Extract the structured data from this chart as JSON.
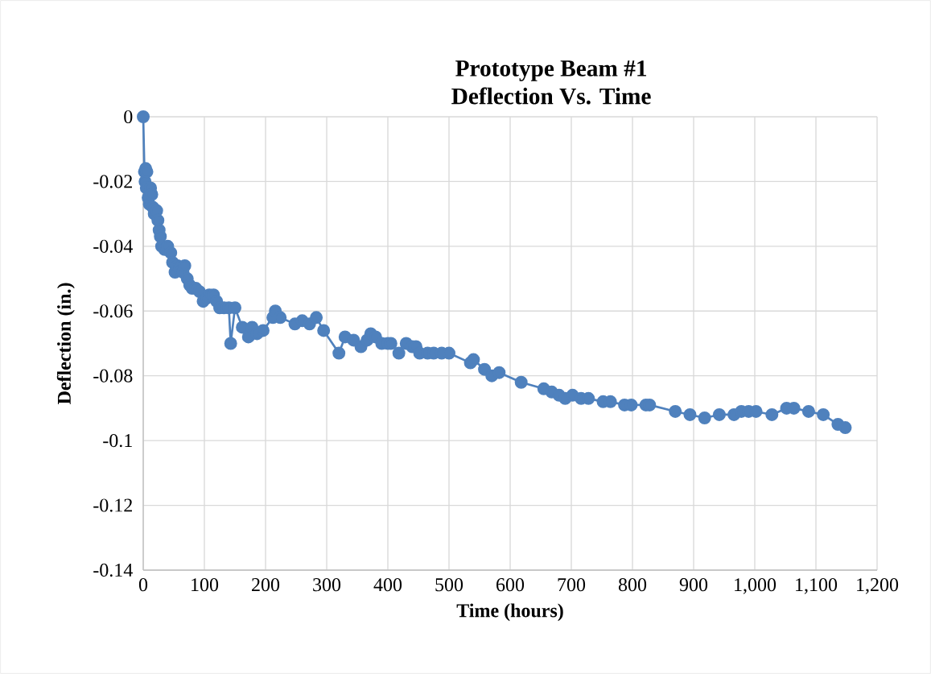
{
  "chart_data": {
    "type": "line",
    "title": "Prototype Beam #1",
    "subtitle": "Deflection Vs. Time",
    "xlabel": "Time (hours)",
    "ylabel": "Deflection (in.)",
    "x": [
      0,
      2,
      3,
      4,
      5,
      6,
      8,
      10,
      12,
      14,
      16,
      18,
      22,
      24,
      26,
      28,
      30,
      35,
      40,
      45,
      48,
      52,
      56,
      60,
      65,
      68,
      72,
      76,
      80,
      86,
      92,
      98,
      104,
      108,
      115,
      120,
      125,
      132,
      140,
      143,
      150,
      162,
      172,
      178,
      186,
      196,
      212,
      216,
      224,
      248,
      260,
      272,
      283,
      295,
      320,
      330,
      344,
      356,
      366,
      372,
      380,
      390,
      400,
      405,
      418,
      430,
      440,
      446,
      452,
      465,
      475,
      488,
      500,
      535,
      540,
      558,
      570,
      582,
      618,
      655,
      668,
      680,
      690,
      702,
      716,
      728,
      752,
      764,
      787,
      798,
      822,
      828,
      870,
      894,
      918,
      942,
      966,
      978,
      990,
      1002,
      1028,
      1052,
      1064,
      1088,
      1112,
      1136,
      1148
    ],
    "series": [
      {
        "color": "#4f81bd",
        "values": [
          0,
          -0.017,
          -0.02,
          -0.016,
          -0.022,
          -0.017,
          -0.025,
          -0.027,
          -0.022,
          -0.024,
          -0.028,
          -0.03,
          -0.029,
          -0.032,
          -0.035,
          -0.037,
          -0.04,
          -0.041,
          -0.04,
          -0.042,
          -0.045,
          -0.048,
          -0.046,
          -0.047,
          -0.048,
          -0.046,
          -0.05,
          -0.052,
          -0.053,
          -0.053,
          -0.054,
          -0.057,
          -0.056,
          -0.055,
          -0.055,
          -0.057,
          -0.059,
          -0.059,
          -0.059,
          -0.07,
          -0.059,
          -0.065,
          -0.068,
          -0.065,
          -0.067,
          -0.066,
          -0.062,
          -0.06,
          -0.062,
          -0.064,
          -0.063,
          -0.064,
          -0.062,
          -0.066,
          -0.073,
          -0.068,
          -0.069,
          -0.071,
          -0.069,
          -0.067,
          -0.068,
          -0.07,
          -0.07,
          -0.07,
          -0.073,
          -0.07,
          -0.071,
          -0.071,
          -0.073,
          -0.073,
          -0.073,
          -0.073,
          -0.073,
          -0.076,
          -0.075,
          -0.078,
          -0.08,
          -0.079,
          -0.082,
          -0.084,
          -0.085,
          -0.086,
          -0.087,
          -0.086,
          -0.087,
          -0.087,
          -0.088,
          -0.088,
          -0.089,
          -0.089,
          -0.089,
          -0.089,
          -0.091,
          -0.092,
          -0.093,
          -0.092,
          -0.092,
          -0.091,
          -0.091,
          -0.091,
          -0.092,
          -0.09,
          -0.09,
          -0.091,
          -0.092,
          -0.095,
          -0.096
        ]
      }
    ],
    "xlim": [
      0,
      1200
    ],
    "ylim": [
      -0.14,
      0
    ],
    "xticks": [
      0,
      100,
      200,
      300,
      400,
      500,
      600,
      700,
      800,
      900,
      {
        "value": 1000,
        "label": "1,000"
      },
      {
        "value": 1100,
        "label": "1,100"
      },
      {
        "value": 1200,
        "label": "1,200"
      }
    ],
    "yticks": [
      -0.14,
      -0.12,
      -0.1,
      -0.08,
      -0.06,
      -0.04,
      -0.02,
      0
    ],
    "grid": true,
    "marker": "circle",
    "line_style": "solid"
  }
}
